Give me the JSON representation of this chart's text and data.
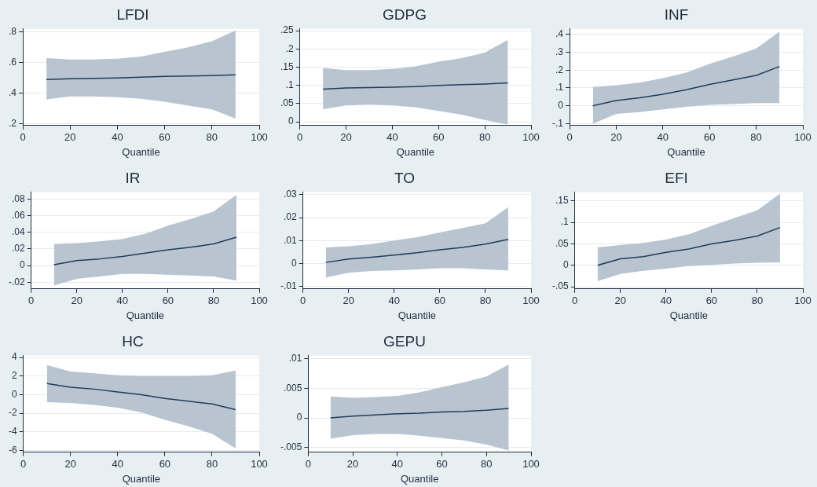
{
  "chart_data": [
    {
      "type": "line",
      "title": "LFDI",
      "xlabel": "Quantile",
      "x": [
        10,
        20,
        30,
        40,
        50,
        60,
        70,
        80,
        90
      ],
      "xlim": [
        0,
        100
      ],
      "xticks": [
        0,
        20,
        40,
        60,
        80,
        100
      ],
      "ylim": [
        0.19,
        0.82
      ],
      "yticks": [
        {
          "value": 0.2,
          "label": ".2"
        },
        {
          "value": 0.4,
          "label": ".4"
        },
        {
          "value": 0.6,
          "label": ".6"
        },
        {
          "value": 0.8,
          "label": ".8"
        }
      ],
      "grid": "y",
      "legend": false,
      "marker": "none",
      "series": [
        {
          "color": "#1f3d5c",
          "values": [
            0.49,
            0.495,
            0.497,
            0.5,
            0.505,
            0.51,
            0.513,
            0.516,
            0.52
          ],
          "lower": [
            0.36,
            0.38,
            0.38,
            0.375,
            0.365,
            0.345,
            0.32,
            0.295,
            0.235
          ],
          "upper": [
            0.63,
            0.62,
            0.62,
            0.625,
            0.64,
            0.67,
            0.7,
            0.74,
            0.81
          ]
        }
      ]
    },
    {
      "type": "line",
      "title": "GDPG",
      "xlabel": "Quantile",
      "x": [
        10,
        20,
        30,
        40,
        50,
        60,
        70,
        80,
        90
      ],
      "xlim": [
        0,
        100
      ],
      "xticks": [
        0,
        20,
        40,
        60,
        80,
        100
      ],
      "ylim": [
        -0.01,
        0.255
      ],
      "yticks": [
        0,
        {
          "value": 0.05,
          "label": ".05"
        },
        {
          "value": 0.1,
          "label": ".1"
        },
        {
          "value": 0.15,
          "label": ".15"
        },
        {
          "value": 0.2,
          "label": ".2"
        },
        {
          "value": 0.25,
          "label": ".25"
        }
      ],
      "grid": "y",
      "legend": false,
      "marker": "none",
      "series": [
        {
          "color": "#1f3d5c",
          "values": [
            0.09,
            0.093,
            0.094,
            0.095,
            0.097,
            0.1,
            0.102,
            0.104,
            0.107
          ],
          "lower": [
            0.035,
            0.045,
            0.047,
            0.045,
            0.04,
            0.03,
            0.02,
            0.005,
            -0.008
          ],
          "upper": [
            0.148,
            0.142,
            0.142,
            0.145,
            0.152,
            0.165,
            0.175,
            0.19,
            0.225
          ]
        }
      ]
    },
    {
      "type": "line",
      "title": "INF",
      "xlabel": "Quantile",
      "x": [
        10,
        20,
        30,
        40,
        50,
        60,
        70,
        80,
        90
      ],
      "xlim": [
        0,
        100
      ],
      "xticks": [
        0,
        20,
        40,
        60,
        80,
        100
      ],
      "ylim": [
        -0.11,
        0.43
      ],
      "yticks": [
        {
          "value": -0.1,
          "label": "-.1"
        },
        0,
        {
          "value": 0.1,
          "label": ".1"
        },
        {
          "value": 0.2,
          "label": ".2"
        },
        {
          "value": 0.3,
          "label": ".3"
        },
        {
          "value": 0.4,
          "label": ".4"
        }
      ],
      "grid": "y",
      "legend": false,
      "marker": "none",
      "series": [
        {
          "color": "#1f3d5c",
          "values": [
            0,
            0.03,
            0.045,
            0.065,
            0.09,
            0.12,
            0.145,
            0.17,
            0.22
          ],
          "lower": [
            -0.1,
            -0.045,
            -0.035,
            -0.02,
            -0.005,
            0.005,
            0.01,
            0.015,
            0.015
          ],
          "upper": [
            0.105,
            0.115,
            0.13,
            0.155,
            0.185,
            0.235,
            0.275,
            0.32,
            0.415
          ]
        }
      ]
    },
    {
      "type": "line",
      "title": "IR",
      "xlabel": "Quantile",
      "x": [
        10,
        20,
        30,
        40,
        50,
        60,
        70,
        80,
        90
      ],
      "xlim": [
        0,
        100
      ],
      "xticks": [
        0,
        20,
        40,
        60,
        80,
        100
      ],
      "ylim": [
        -0.028,
        0.088
      ],
      "yticks": [
        {
          "value": -0.02,
          "label": "-.02"
        },
        0,
        {
          "value": 0.02,
          "label": ".02"
        },
        {
          "value": 0.04,
          "label": ".04"
        },
        {
          "value": 0.06,
          "label": ".06"
        },
        {
          "value": 0.08,
          "label": ".08"
        }
      ],
      "grid": "y",
      "legend": false,
      "marker": "none",
      "series": [
        {
          "color": "#1f3d5c",
          "values": [
            0.001,
            0.006,
            0.008,
            0.011,
            0.015,
            0.019,
            0.022,
            0.026,
            0.034
          ],
          "lower": [
            -0.024,
            -0.016,
            -0.013,
            -0.01,
            -0.01,
            -0.011,
            -0.012,
            -0.013,
            -0.018
          ],
          "upper": [
            0.026,
            0.027,
            0.029,
            0.032,
            0.038,
            0.048,
            0.056,
            0.065,
            0.085
          ]
        }
      ]
    },
    {
      "type": "line",
      "title": "TO",
      "xlabel": "Quantile",
      "x": [
        10,
        20,
        30,
        40,
        50,
        60,
        70,
        80,
        90
      ],
      "xlim": [
        0,
        100
      ],
      "xticks": [
        0,
        20,
        40,
        60,
        80,
        100
      ],
      "ylim": [
        -0.011,
        0.031
      ],
      "yticks": [
        {
          "value": -0.01,
          "label": "-.01"
        },
        0,
        {
          "value": 0.01,
          "label": ".01"
        },
        {
          "value": 0.02,
          "label": ".02"
        },
        {
          "value": 0.03,
          "label": ".03"
        }
      ],
      "grid": "y",
      "legend": false,
      "marker": "none",
      "series": [
        {
          "color": "#1f3d5c",
          "values": [
            0.0005,
            0.002,
            0.0028,
            0.0037,
            0.0047,
            0.006,
            0.007,
            0.0085,
            0.0105
          ],
          "lower": [
            -0.006,
            -0.004,
            -0.0032,
            -0.003,
            -0.0025,
            -0.002,
            -0.002,
            -0.0025,
            -0.003
          ],
          "upper": [
            0.007,
            0.0075,
            0.0085,
            0.01,
            0.0115,
            0.0135,
            0.0155,
            0.0175,
            0.0245
          ]
        }
      ]
    },
    {
      "type": "line",
      "title": "EFI",
      "xlabel": "Quantile",
      "x": [
        10,
        20,
        30,
        40,
        50,
        60,
        70,
        80,
        90
      ],
      "xlim": [
        0,
        100
      ],
      "xticks": [
        0,
        20,
        40,
        60,
        80,
        100
      ],
      "ylim": [
        -0.055,
        0.17
      ],
      "yticks": [
        {
          "value": -0.05,
          "label": "-.05"
        },
        0,
        {
          "value": 0.05,
          "label": ".05"
        },
        {
          "value": 0.1,
          "label": ".1"
        },
        {
          "value": 0.15,
          "label": ".15"
        }
      ],
      "grid": "y",
      "legend": false,
      "marker": "none",
      "series": [
        {
          "color": "#1f3d5c",
          "values": [
            0,
            0.015,
            0.02,
            0.03,
            0.038,
            0.05,
            0.058,
            0.068,
            0.088
          ],
          "lower": [
            -0.037,
            -0.02,
            -0.013,
            -0.008,
            -0.002,
            0.001,
            0.004,
            0.006,
            0.007
          ],
          "upper": [
            0.042,
            0.047,
            0.052,
            0.06,
            0.072,
            0.092,
            0.11,
            0.128,
            0.167
          ]
        }
      ]
    },
    {
      "type": "line",
      "title": "HC",
      "xlabel": "Quantile",
      "x": [
        10,
        20,
        30,
        40,
        50,
        60,
        70,
        80,
        90
      ],
      "xlim": [
        0,
        100
      ],
      "xticks": [
        0,
        20,
        40,
        60,
        80,
        100
      ],
      "ylim": [
        -6.2,
        4.2
      ],
      "yticks": [
        -6,
        -4,
        -2,
        0,
        2,
        4
      ],
      "grid": "y",
      "legend": false,
      "marker": "none",
      "series": [
        {
          "color": "#1f3d5c",
          "values": [
            1.2,
            0.8,
            0.6,
            0.3,
            0,
            -0.4,
            -0.7,
            -1,
            -1.6
          ],
          "lower": [
            -0.8,
            -0.9,
            -1.1,
            -1.4,
            -1.9,
            -2.7,
            -3.4,
            -4.2,
            -5.8
          ],
          "upper": [
            3.2,
            2.5,
            2.3,
            2.1,
            2,
            2,
            2,
            2.1,
            2.6
          ]
        }
      ]
    },
    {
      "type": "line",
      "title": "GEPU",
      "xlabel": "Quantile",
      "x": [
        10,
        20,
        30,
        40,
        50,
        60,
        70,
        80,
        90
      ],
      "xlim": [
        0,
        100
      ],
      "xticks": [
        0,
        20,
        40,
        60,
        80,
        100
      ],
      "ylim": [
        -0.0058,
        0.0105
      ],
      "yticks": [
        {
          "value": -0.005,
          "label": "-.005"
        },
        0,
        {
          "value": 0.005,
          "label": ".005"
        },
        {
          "value": 0.01,
          "label": ".01"
        }
      ],
      "grid": "y",
      "legend": false,
      "marker": "none",
      "series": [
        {
          "color": "#1f3d5c",
          "values": [
            0,
            0.0003,
            0.0005,
            0.0007,
            0.0008,
            0.001,
            0.0011,
            0.0013,
            0.0016
          ],
          "lower": [
            -0.0035,
            -0.0029,
            -0.0027,
            -0.0027,
            -0.003,
            -0.0034,
            -0.0038,
            -0.0045,
            -0.0055
          ],
          "upper": [
            0.0036,
            0.0034,
            0.0035,
            0.0037,
            0.0043,
            0.0052,
            0.006,
            0.007,
            0.009
          ]
        }
      ]
    }
  ]
}
